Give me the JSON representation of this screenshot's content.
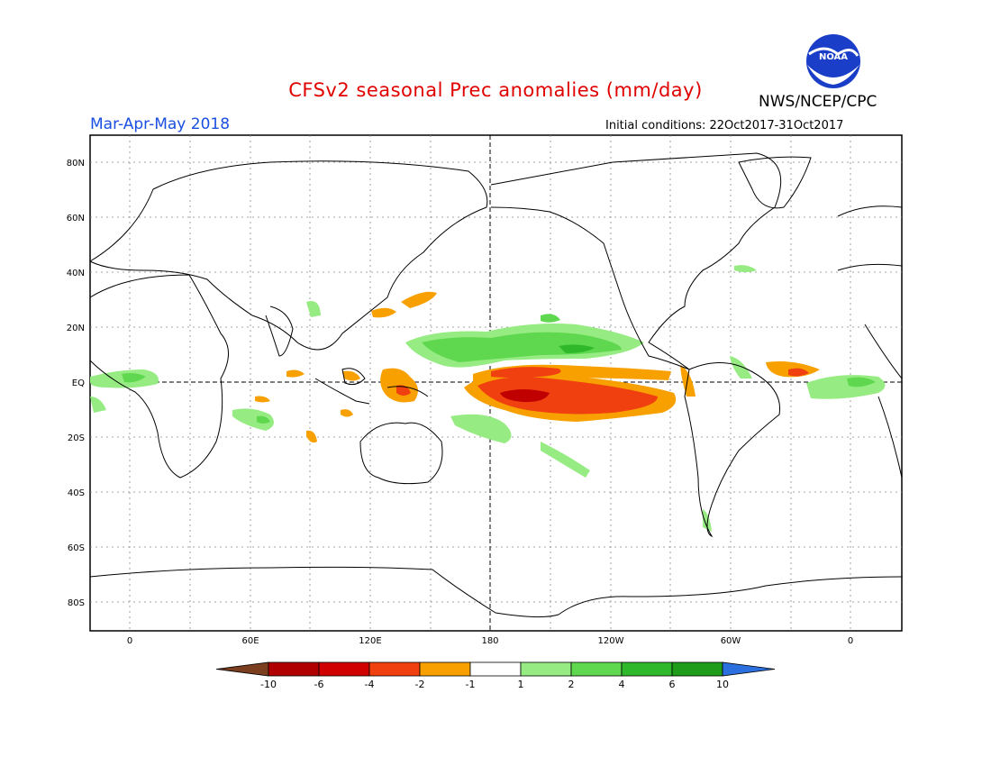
{
  "header": {
    "title": "CFSv2 seasonal Prec anomalies (mm/day)",
    "organization": "NWS/NCEP/CPC",
    "period": "Mar-Apr-May 2018",
    "initial_conditions": "Initial conditions: 22Oct2017-31Oct2017",
    "logo_text": "NOAA"
  },
  "map": {
    "lat_labels": [
      "80N",
      "60N",
      "40N",
      "20N",
      "EQ",
      "20S",
      "40S",
      "60S",
      "80S"
    ],
    "lon_labels": [
      "0",
      "60E",
      "120E",
      "180",
      "120W",
      "60W",
      "0"
    ]
  },
  "colorbar": {
    "labels": [
      "-10",
      "-6",
      "-4",
      "-2",
      "-1",
      "1",
      "2",
      "4",
      "6",
      "10"
    ],
    "colors": [
      "#7b3f1f",
      "#b00000",
      "#d10000",
      "#f04010",
      "#f8a000",
      "#ffffff",
      "#96ec82",
      "#5fd84f",
      "#2fb82a",
      "#1f9c1a",
      "#2c6fde"
    ]
  },
  "colors": {
    "title": "#e00000",
    "period": "#1a4fe0",
    "dry_light": "#f8a000",
    "dry_mid": "#f04010",
    "dry_strong": "#d10000",
    "dry_extreme": "#a00000",
    "wet_light": "#96ec82",
    "wet_mid": "#5fd84f",
    "wet_strong": "#2fb82a"
  }
}
